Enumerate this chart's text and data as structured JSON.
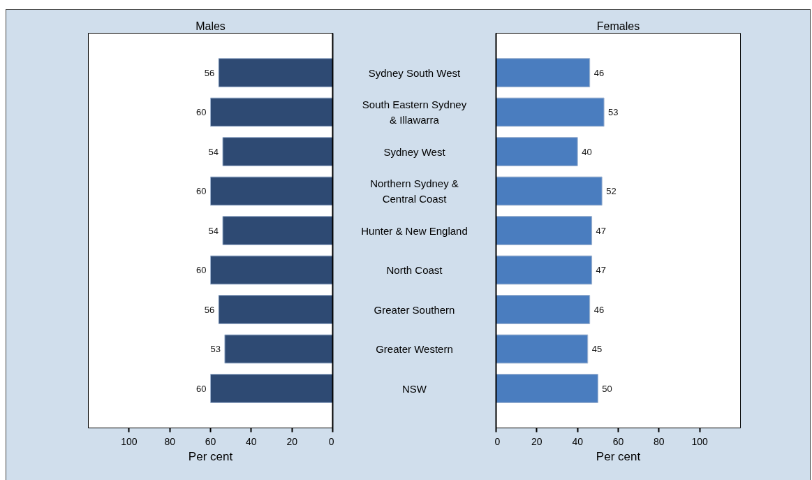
{
  "chart_data": [
    {
      "type": "bar",
      "orientation": "horizontal",
      "title": "Males",
      "xlabel": "Per cent",
      "categories": [
        "Sydney South West",
        "South Eastern Sydney & Illawarra",
        "Sydney West",
        "Northern Sydney & Central Coast",
        "Hunter & New England",
        "North Coast",
        "Greater Southern",
        "Greater Western",
        "NSW"
      ],
      "values": [
        56,
        60,
        54,
        60,
        54,
        60,
        56,
        53,
        60
      ],
      "color": "#2e4a73",
      "xlim": [
        120,
        0
      ],
      "xticks": [
        0,
        20,
        40,
        60,
        80,
        100
      ],
      "data_labels": true
    },
    {
      "type": "bar",
      "orientation": "horizontal",
      "title": "Females",
      "xlabel": "Per cent",
      "categories": [
        "Sydney South West",
        "South Eastern Sydney & Illawarra",
        "Sydney West",
        "Northern Sydney & Central Coast",
        "Hunter & New England",
        "North Coast",
        "Greater Southern",
        "Greater Western",
        "NSW"
      ],
      "values": [
        46,
        53,
        40,
        52,
        47,
        47,
        46,
        45,
        50
      ],
      "color": "#4a7dbf",
      "xlim": [
        0,
        120
      ],
      "xticks": [
        0,
        20,
        40,
        60,
        80,
        100
      ],
      "data_labels": true,
      "tick_labels": "x"
    }
  ]
}
